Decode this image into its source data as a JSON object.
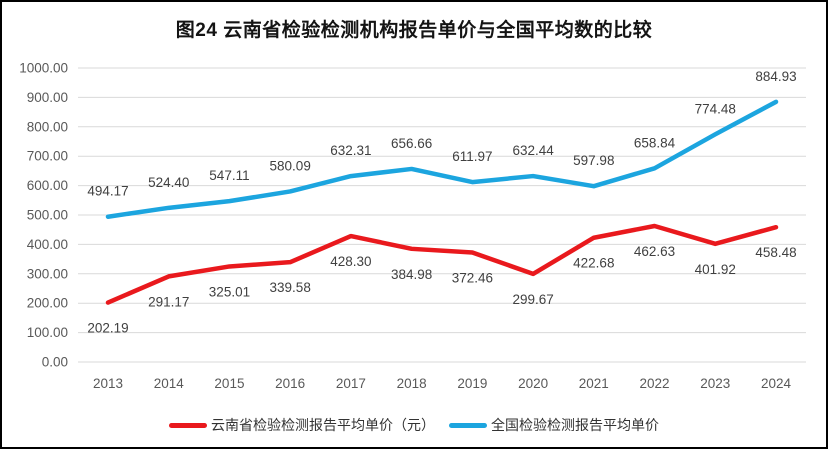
{
  "colors": {
    "yunnan_red": "#E9191D",
    "national_blue": "#1CA5DF",
    "gridline": "#D9D9D9",
    "axis_text": "#595959",
    "data_label_text": "#404040",
    "frame_border": "#000000",
    "background": "#FFFFFF"
  },
  "chart_data": {
    "type": "line",
    "title": "图24 云南省检验检测机构报告单价与全国平均数的比较",
    "xlabel": "",
    "ylabel": "",
    "categories": [
      "2013",
      "2014",
      "2015",
      "2016",
      "2017",
      "2018",
      "2019",
      "2020",
      "2021",
      "2022",
      "2023",
      "2024"
    ],
    "series": [
      {
        "name": "云南省检验检测报告平均单价（元）",
        "color": "#E9191D",
        "label_position": "below",
        "values": [
          202.19,
          291.17,
          325.01,
          339.58,
          428.3,
          384.98,
          372.46,
          299.67,
          422.68,
          462.63,
          401.92,
          458.48
        ]
      },
      {
        "name": "全国检验检测报告平均单价",
        "color": "#1CA5DF",
        "label_position": "above",
        "values": [
          494.17,
          524.4,
          547.11,
          580.09,
          632.31,
          656.66,
          611.97,
          632.44,
          597.98,
          658.84,
          774.48,
          884.93
        ]
      }
    ],
    "ylim": [
      0,
      1000
    ],
    "yticks": [
      "0.00",
      "100.00",
      "200.00",
      "300.00",
      "400.00",
      "500.00",
      "600.00",
      "700.00",
      "800.00",
      "900.00",
      "1000.00"
    ],
    "grid": true,
    "legend_position": "bottom",
    "data_labels": true,
    "data_label_decimals": 2
  }
}
